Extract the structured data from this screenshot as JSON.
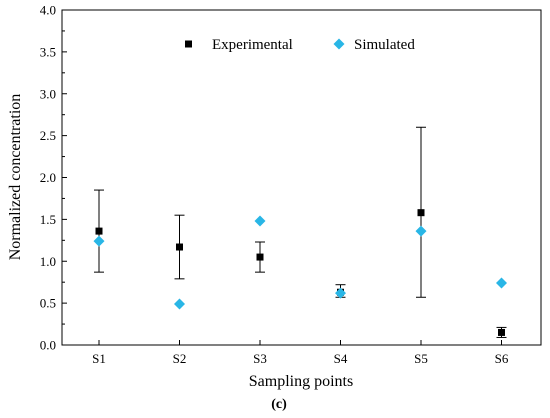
{
  "chart_data": {
    "type": "scatter",
    "title": "",
    "xlabel": "Sampling points",
    "ylabel": "Normalized concentration",
    "categories": [
      "S1",
      "S2",
      "S3",
      "S4",
      "S5",
      "S6"
    ],
    "ylim": [
      0.0,
      4.0
    ],
    "yticks": [
      "0.0",
      "0.5",
      "1.0",
      "1.5",
      "2.0",
      "2.5",
      "3.0",
      "3.5",
      "4.0"
    ],
    "grid": false,
    "legend_position": "top-center",
    "series": [
      {
        "name": "Experimental",
        "marker": "square",
        "color": "#000000",
        "values": [
          1.36,
          1.17,
          1.05,
          0.63,
          1.58,
          0.15
        ],
        "error_low": [
          0.87,
          0.79,
          0.87,
          0.57,
          0.57,
          0.09
        ],
        "error_high": [
          1.85,
          1.55,
          1.23,
          0.72,
          2.6,
          0.21
        ]
      },
      {
        "name": "Simulated",
        "marker": "diamond",
        "color": "#29b6e6",
        "values": [
          1.24,
          0.49,
          1.48,
          0.62,
          1.36,
          0.74
        ]
      }
    ]
  },
  "caption": "(c)"
}
